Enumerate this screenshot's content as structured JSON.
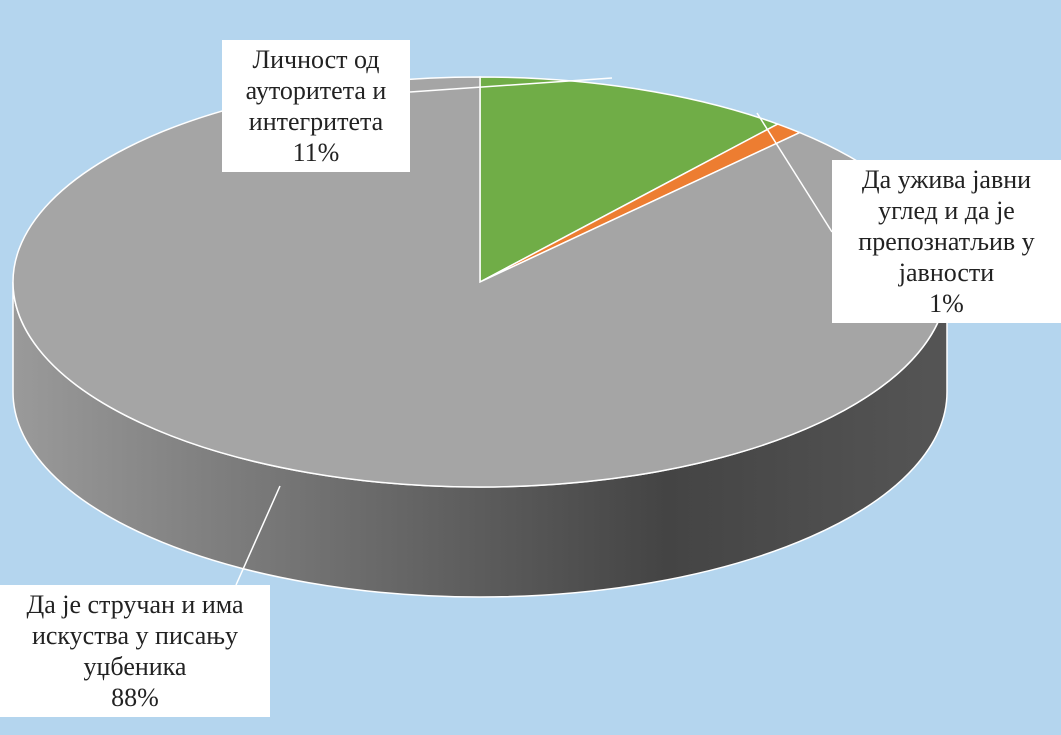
{
  "chart_data": {
    "type": "pie",
    "categories": [
      "Личност од ауторитета и интегритета",
      "Да ужива јавни углед и да је препознатљив у јавности",
      "Да је стручан и има искуства у писању уџбеника"
    ],
    "values": [
      11,
      1,
      88
    ],
    "value_labels": [
      "11%",
      "1%",
      "88%"
    ],
    "colors": [
      "#70ad47",
      "#ed7d31",
      "#a5a5a5"
    ]
  }
}
